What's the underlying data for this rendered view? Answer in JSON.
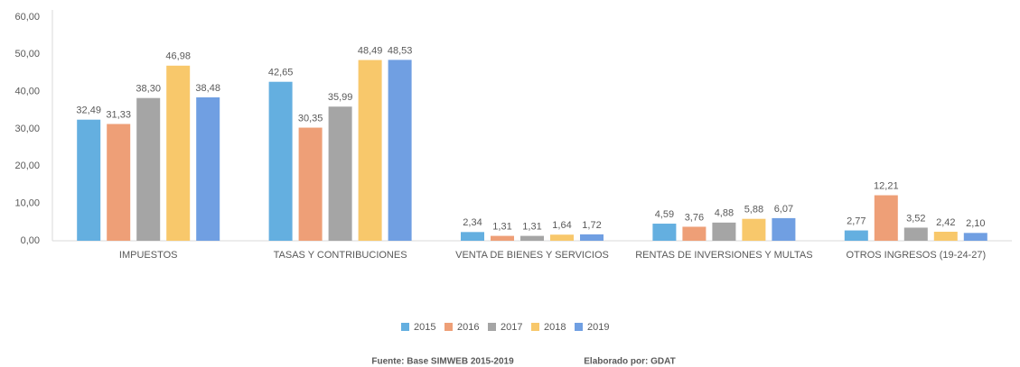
{
  "chart_data": {
    "type": "bar",
    "categories": [
      "IMPUESTOS",
      "TASAS Y CONTRIBUCIONES",
      "VENTA DE BIENES Y SERVICIOS",
      "RENTAS DE INVERSIONES Y MULTAS",
      "OTROS INGRESOS (19-24-27)"
    ],
    "series": [
      {
        "name": "2015",
        "color": "#64afe0",
        "values": [
          32.49,
          42.65,
          2.34,
          4.59,
          2.77
        ],
        "value_labels": [
          "32,49",
          "42,65",
          "2,34",
          "4,59",
          "2,77"
        ]
      },
      {
        "name": "2016",
        "color": "#ee9f77",
        "values": [
          31.33,
          30.35,
          1.31,
          3.76,
          12.21
        ],
        "value_labels": [
          "31,33",
          "30,35",
          "1,31",
          "3,76",
          "12,21"
        ]
      },
      {
        "name": "2017",
        "color": "#a5a5a5",
        "values": [
          38.3,
          35.99,
          1.31,
          4.88,
          3.52
        ],
        "value_labels": [
          "38,30",
          "35,99",
          "1,31",
          "4,88",
          "3,52"
        ]
      },
      {
        "name": "2018",
        "color": "#f8c86b",
        "values": [
          46.98,
          48.49,
          1.64,
          5.88,
          2.42
        ],
        "value_labels": [
          "46,98",
          "48,49",
          "1,64",
          "5,88",
          "2,42"
        ]
      },
      {
        "name": "2019",
        "color": "#709fe2",
        "values": [
          38.48,
          48.53,
          1.72,
          6.07,
          2.1
        ],
        "value_labels": [
          "38,48",
          "48,53",
          "1,72",
          "6,07",
          "2,10"
        ]
      }
    ],
    "ylim": [
      0,
      60
    ],
    "yticks": [
      {
        "value": 0,
        "label": "0,00"
      },
      {
        "value": 10,
        "label": "10,00"
      },
      {
        "value": 20,
        "label": "20,00"
      },
      {
        "value": 30,
        "label": "30,00"
      },
      {
        "value": 40,
        "label": "40,00"
      },
      {
        "value": 50,
        "label": "50,00"
      },
      {
        "value": 60,
        "label": "60,00"
      }
    ],
    "grid": false,
    "legend": "bottom",
    "source": "Fuente: Base SIMWEB 2015-2019",
    "credit": "Elaborado por: GDAT"
  }
}
